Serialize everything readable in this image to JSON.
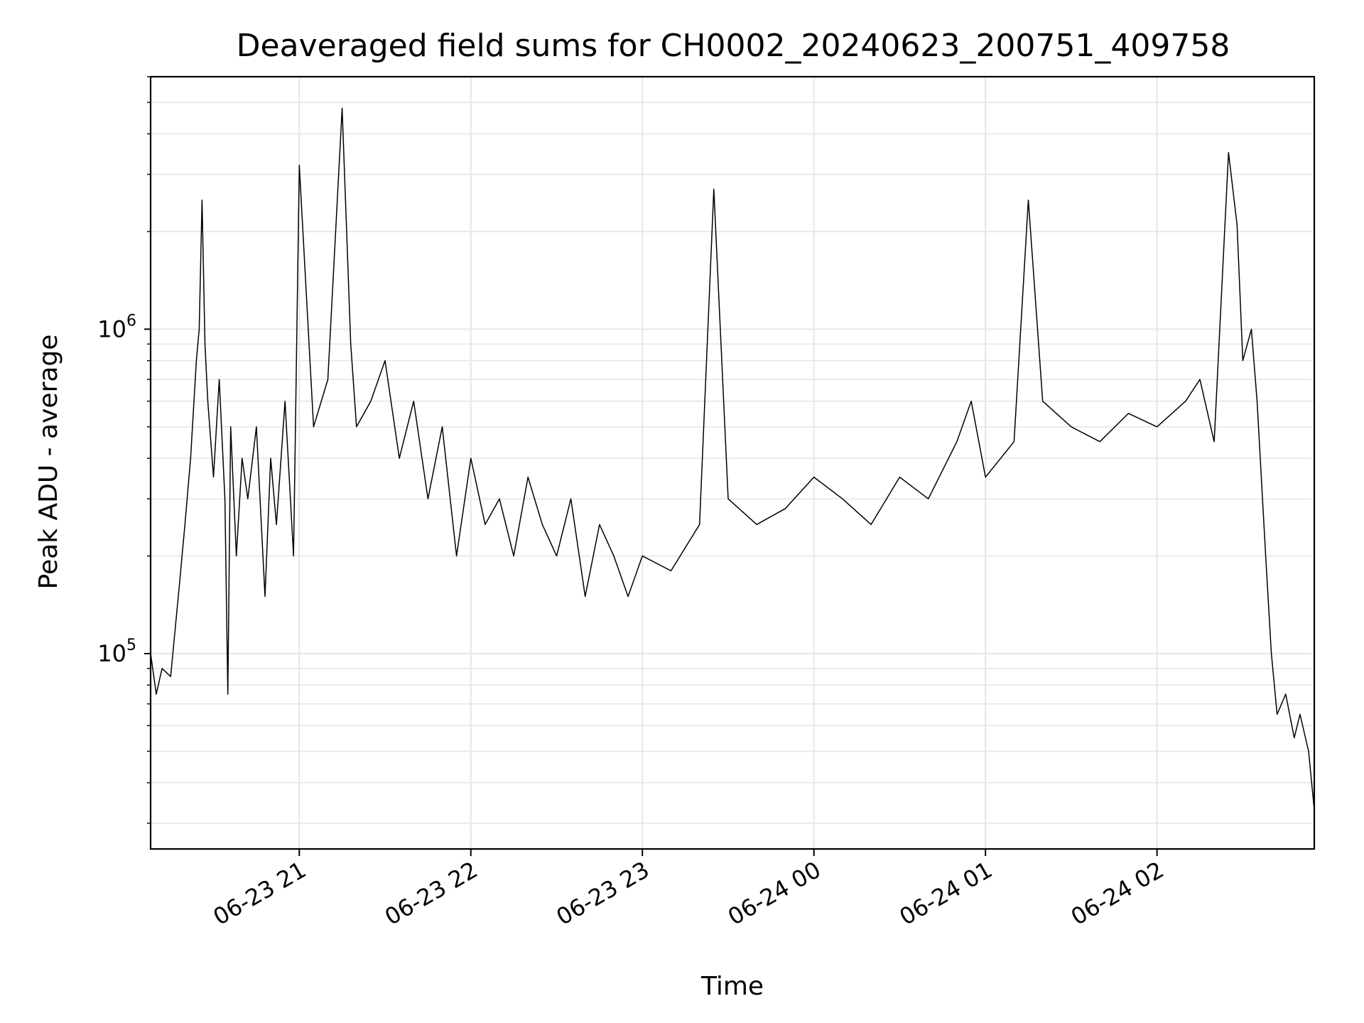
{
  "chart_data": {
    "type": "line",
    "title": "Deaveraged field sums for CH0002_20240623_200751_409758",
    "xlabel": "Time",
    "ylabel": "Peak ADU - average",
    "y_scale": "log",
    "grid": true,
    "line_color": "#000000",
    "grid_color": "#e6e6e6",
    "xlim": [
      "2024-06-23 20:08",
      "2024-06-24 02:55"
    ],
    "ylim": [
      25000,
      6000000
    ],
    "x_ticks": [
      "06-23 21",
      "06-23 22",
      "06-23 23",
      "06-24 00",
      "06-24 01",
      "06-24 02"
    ],
    "x_tick_values": [
      "2024-06-23 21:00",
      "2024-06-23 22:00",
      "2024-06-23 23:00",
      "2024-06-24 00:00",
      "2024-06-24 01:00",
      "2024-06-24 02:00"
    ],
    "y_ticks": [
      {
        "base": "10",
        "exp": "5",
        "value": 100000
      },
      {
        "base": "10",
        "exp": "6",
        "value": 1000000
      }
    ],
    "series": [
      {
        "x": [
          "2024-06-23 20:08",
          "2024-06-23 20:10",
          "2024-06-23 20:12",
          "2024-06-23 20:15",
          "2024-06-23 20:18",
          "2024-06-23 20:20",
          "2024-06-23 20:22",
          "2024-06-23 20:24",
          "2024-06-23 20:25",
          "2024-06-23 20:26",
          "2024-06-23 20:27",
          "2024-06-23 20:28",
          "2024-06-23 20:30",
          "2024-06-23 20:32",
          "2024-06-23 20:34",
          "2024-06-23 20:35",
          "2024-06-23 20:36",
          "2024-06-23 20:38",
          "2024-06-23 20:40",
          "2024-06-23 20:42",
          "2024-06-23 20:45",
          "2024-06-23 20:48",
          "2024-06-23 20:50",
          "2024-06-23 20:52",
          "2024-06-23 20:55",
          "2024-06-23 20:58",
          "2024-06-23 21:00",
          "2024-06-23 21:05",
          "2024-06-23 21:10",
          "2024-06-23 21:15",
          "2024-06-23 21:18",
          "2024-06-23 21:20",
          "2024-06-23 21:25",
          "2024-06-23 21:30",
          "2024-06-23 21:35",
          "2024-06-23 21:40",
          "2024-06-23 21:45",
          "2024-06-23 21:50",
          "2024-06-23 21:55",
          "2024-06-23 22:00",
          "2024-06-23 22:05",
          "2024-06-23 22:10",
          "2024-06-23 22:15",
          "2024-06-23 22:20",
          "2024-06-23 22:25",
          "2024-06-23 22:30",
          "2024-06-23 22:35",
          "2024-06-23 22:40",
          "2024-06-23 22:45",
          "2024-06-23 22:50",
          "2024-06-23 22:55",
          "2024-06-23 23:00",
          "2024-06-23 23:10",
          "2024-06-23 23:20",
          "2024-06-23 23:25",
          "2024-06-23 23:30",
          "2024-06-23 23:40",
          "2024-06-23 23:50",
          "2024-06-24 00:00",
          "2024-06-24 00:10",
          "2024-06-24 00:20",
          "2024-06-24 00:30",
          "2024-06-24 00:40",
          "2024-06-24 00:50",
          "2024-06-24 00:55",
          "2024-06-24 01:00",
          "2024-06-24 01:10",
          "2024-06-24 01:15",
          "2024-06-24 01:20",
          "2024-06-24 01:30",
          "2024-06-24 01:40",
          "2024-06-24 01:50",
          "2024-06-24 02:00",
          "2024-06-24 02:10",
          "2024-06-24 02:15",
          "2024-06-24 02:20",
          "2024-06-24 02:25",
          "2024-06-24 02:28",
          "2024-06-24 02:30",
          "2024-06-24 02:33",
          "2024-06-24 02:35",
          "2024-06-24 02:38",
          "2024-06-24 02:40",
          "2024-06-24 02:42",
          "2024-06-24 02:45",
          "2024-06-24 02:48",
          "2024-06-24 02:50",
          "2024-06-24 02:53",
          "2024-06-24 02:55"
        ],
        "y": [
          100000,
          75000,
          90000,
          85000,
          160000,
          250000,
          400000,
          800000,
          1000000,
          2500000,
          900000,
          600000,
          350000,
          700000,
          300000,
          75000,
          500000,
          200000,
          400000,
          300000,
          500000,
          150000,
          400000,
          250000,
          600000,
          200000,
          3200000,
          500000,
          700000,
          4800000,
          900000,
          500000,
          600000,
          800000,
          400000,
          600000,
          300000,
          500000,
          200000,
          400000,
          250000,
          300000,
          200000,
          350000,
          250000,
          200000,
          300000,
          150000,
          250000,
          200000,
          150000,
          200000,
          180000,
          250000,
          2700000,
          300000,
          250000,
          280000,
          350000,
          300000,
          250000,
          350000,
          300000,
          450000,
          600000,
          350000,
          450000,
          2500000,
          600000,
          500000,
          450000,
          550000,
          500000,
          600000,
          700000,
          450000,
          3500000,
          2100000,
          800000,
          1000000,
          600000,
          200000,
          100000,
          65000,
          75000,
          55000,
          65000,
          50000,
          33000
        ]
      }
    ]
  }
}
